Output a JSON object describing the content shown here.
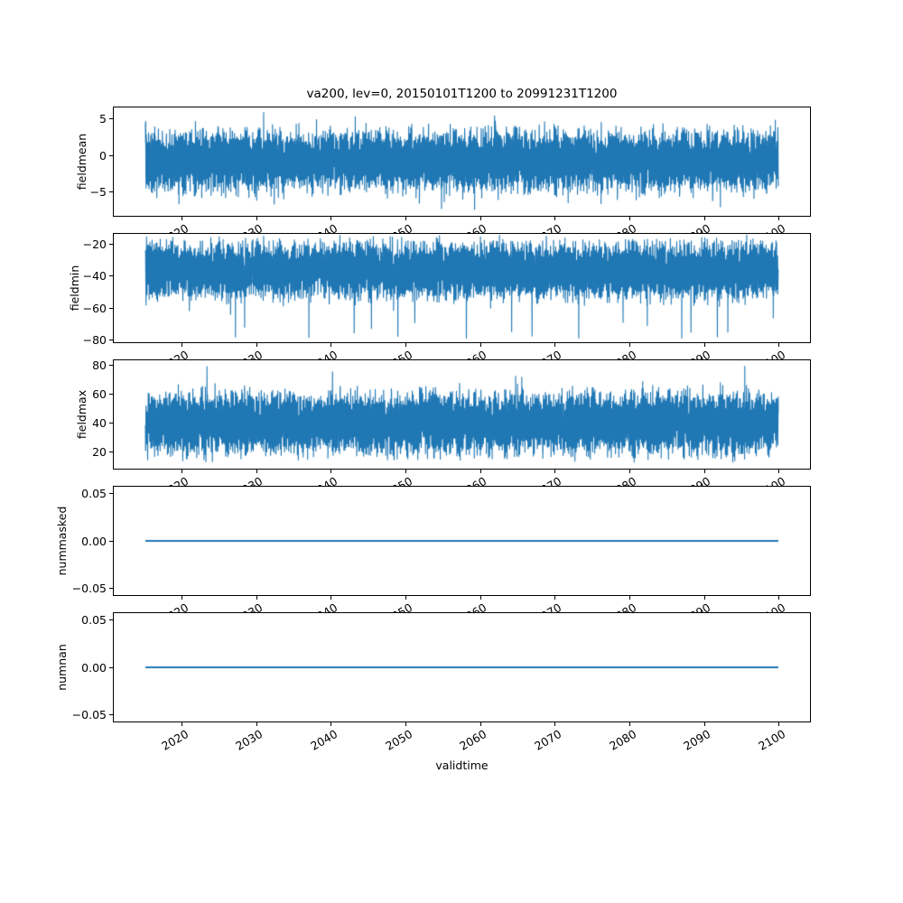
{
  "figure": {
    "background": "#ffffff"
  },
  "chart_data": {
    "type": "line",
    "title": "va200, lev=0, 20150101T1200 to 20991231T1200",
    "xlabel": "validtime",
    "line_color": "#1f77b4",
    "x_data_range": [
      2015,
      2100
    ],
    "xlim": [
      2010.75,
      2104.25
    ],
    "grid": false,
    "legend": "none",
    "x_ticks": [
      {
        "value": 2020,
        "label": "2020"
      },
      {
        "value": 2030,
        "label": "2030"
      },
      {
        "value": 2040,
        "label": "2040"
      },
      {
        "value": 2050,
        "label": "2050"
      },
      {
        "value": 2060,
        "label": "2060"
      },
      {
        "value": 2070,
        "label": "2070"
      },
      {
        "value": 2080,
        "label": "2080"
      },
      {
        "value": 2090,
        "label": "2090"
      },
      {
        "value": 2100,
        "label": "2100"
      }
    ],
    "subplots": [
      {
        "ylabel": "fieldmean",
        "ylim": [
          -8.3,
          6.6
        ],
        "yticks": [
          {
            "value": 5,
            "label": "5"
          },
          {
            "value": 0,
            "label": "0"
          },
          {
            "value": -5,
            "label": "−5"
          }
        ],
        "signal": {
          "kind": "noisy",
          "band": [
            -5.0,
            3.5
          ],
          "extremes": [
            -7.6,
            6.1
          ],
          "description": "dense oscillating noise around 0"
        }
      },
      {
        "ylabel": "fieldmin",
        "ylim": [
          -82,
          -13
        ],
        "yticks": [
          {
            "value": -20,
            "label": "−20"
          },
          {
            "value": -40,
            "label": "−40"
          },
          {
            "value": -60,
            "label": "−60"
          },
          {
            "value": -80,
            "label": "−80"
          }
        ],
        "signal": {
          "kind": "noisy",
          "band": [
            -55,
            -18
          ],
          "extremes": [
            -80,
            -17
          ],
          "description": "dense noise band near −20 to −55 with downward spikes to −80"
        }
      },
      {
        "ylabel": "fieldmax",
        "ylim": [
          7.5,
          83.8
        ],
        "yticks": [
          {
            "value": 80,
            "label": "80"
          },
          {
            "value": 60,
            "label": "60"
          },
          {
            "value": 40,
            "label": "40"
          },
          {
            "value": 20,
            "label": "20"
          }
        ],
        "signal": {
          "kind": "noisy",
          "band": [
            17,
            62
          ],
          "extremes": [
            14,
            81
          ],
          "description": "dense noise band near 20 to 60 with upward spikes to 80"
        }
      },
      {
        "ylabel": "nummasked",
        "ylim": [
          -0.058,
          0.058
        ],
        "yticks": [
          {
            "value": 0.05,
            "label": "0.05"
          },
          {
            "value": 0,
            "label": "0.00"
          },
          {
            "value": -0.05,
            "label": "−0.05"
          }
        ],
        "signal": {
          "kind": "constant",
          "value": 0,
          "description": "flat line at 0"
        }
      },
      {
        "ylabel": "numnan",
        "ylim": [
          -0.058,
          0.058
        ],
        "yticks": [
          {
            "value": 0.05,
            "label": "0.05"
          },
          {
            "value": 0,
            "label": "0.00"
          },
          {
            "value": -0.05,
            "label": "−0.05"
          }
        ],
        "signal": {
          "kind": "constant",
          "value": 0,
          "description": "flat line at 0"
        }
      }
    ]
  }
}
